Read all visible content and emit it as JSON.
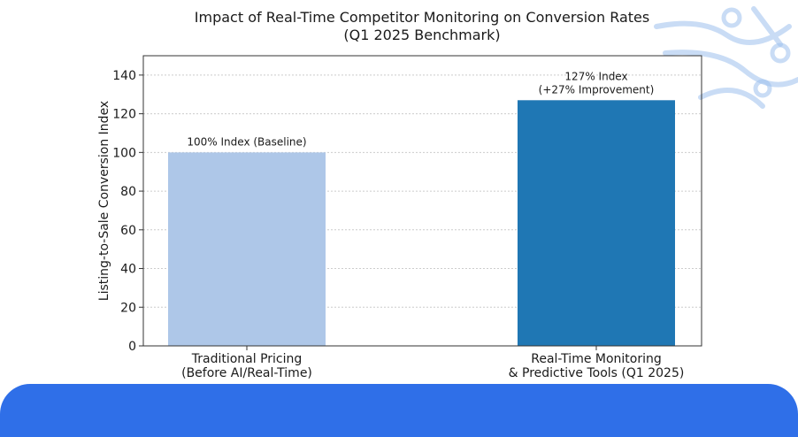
{
  "colors": {
    "bar_baseline": "#aec7e8",
    "bar_improved": "#1f77b4",
    "banner": "#2f6fe8",
    "decoration": "#9ec1ee"
  },
  "chart_data": {
    "type": "bar",
    "title_lines": [
      "Impact of Real-Time Competitor Monitoring on Conversion Rates",
      "(Q1 2025 Benchmark)"
    ],
    "xlabel": "",
    "ylabel": "Listing-to-Sale Conversion Index",
    "ylim": [
      0,
      150
    ],
    "yticks": [
      0,
      20,
      40,
      60,
      80,
      100,
      120,
      140
    ],
    "grid": true,
    "categories": [
      [
        "Traditional Pricing",
        "(Before AI/Real-Time)"
      ],
      [
        "Real-Time Monitoring",
        "& Predictive Tools (Q1 2025)"
      ]
    ],
    "values": [
      100,
      127
    ],
    "data_labels": [
      [
        "100% Index (Baseline)"
      ],
      [
        "127% Index",
        "(+27% Improvement)"
      ]
    ]
  }
}
